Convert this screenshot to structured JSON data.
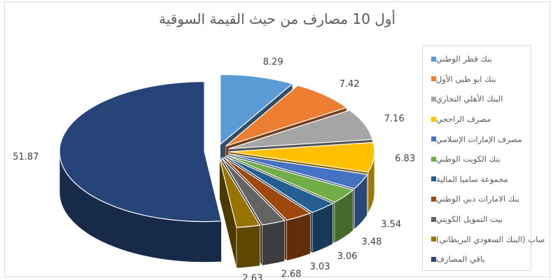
{
  "chart_data": {
    "type": "pie",
    "title": "أول 10 مصارف من حيث القيمة السوقية",
    "legend_position": "right",
    "categories": [
      "بنك قطر الوطني",
      "بنك ابو ظبي الأول",
      "البنك الأهلي التجاري",
      "مصرف الراجحي",
      "مصرف الإمارات الإسلامي",
      "بنك الكويت الوطني",
      "مجموعة ساميا المالية",
      "بنك الامارات دبي الوطني",
      "بيت التمويل الكويتي",
      "ساب (البنك السعودي البريطاني)",
      "باقي المصارف"
    ],
    "values": [
      8.29,
      7.42,
      7.16,
      6.83,
      3.54,
      3.48,
      3.06,
      3.03,
      2.68,
      2.63,
      51.87
    ],
    "value_labels": [
      "8.29",
      "7.42",
      "7.16",
      "6.83",
      "3.54",
      "3.48",
      "3.06",
      "3.03",
      "2.68",
      "2.63",
      "51.87"
    ],
    "colors": [
      "#5b9bd5",
      "#ed7d31",
      "#a5a5a5",
      "#ffc000",
      "#4472c4",
      "#70ad47",
      "#255e91",
      "#9e480e",
      "#636363",
      "#997300",
      "#264478"
    ]
  }
}
